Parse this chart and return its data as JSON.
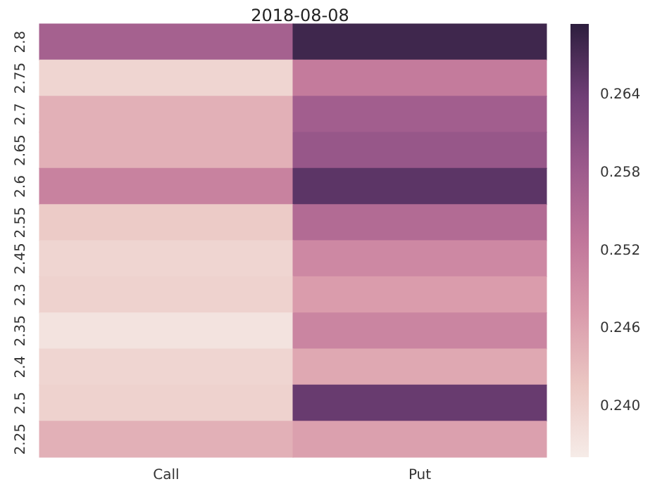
{
  "chart_data": {
    "type": "heatmap",
    "title": "2018-08-08",
    "categories": [
      "Call",
      "Put"
    ],
    "y_categories": [
      "2.8",
      "2.75",
      "2.7",
      "2.65",
      "2.6",
      "2.55",
      "2.45",
      "2.3",
      "2.35",
      "2.4",
      "2.5",
      "2.25"
    ],
    "cells": [
      [
        0.257,
        0.268
      ],
      [
        0.2395,
        0.252
      ],
      [
        0.2445,
        0.2575
      ],
      [
        0.2445,
        0.259
      ],
      [
        0.251,
        0.2655
      ],
      [
        0.241,
        0.255
      ],
      [
        0.2395,
        0.25
      ],
      [
        0.24,
        0.247
      ],
      [
        0.2375,
        0.2505
      ],
      [
        0.2395,
        0.2455
      ],
      [
        0.24,
        0.2645
      ],
      [
        0.2445,
        0.2465
      ]
    ],
    "clim": [
      0.2361,
      0.2695
    ],
    "cticks": [
      {
        "value": 0.24,
        "label": "0.240"
      },
      {
        "value": 0.246,
        "label": "0.246"
      },
      {
        "value": 0.252,
        "label": "0.252"
      },
      {
        "value": 0.258,
        "label": "0.258"
      },
      {
        "value": 0.264,
        "label": "0.264"
      }
    ]
  }
}
